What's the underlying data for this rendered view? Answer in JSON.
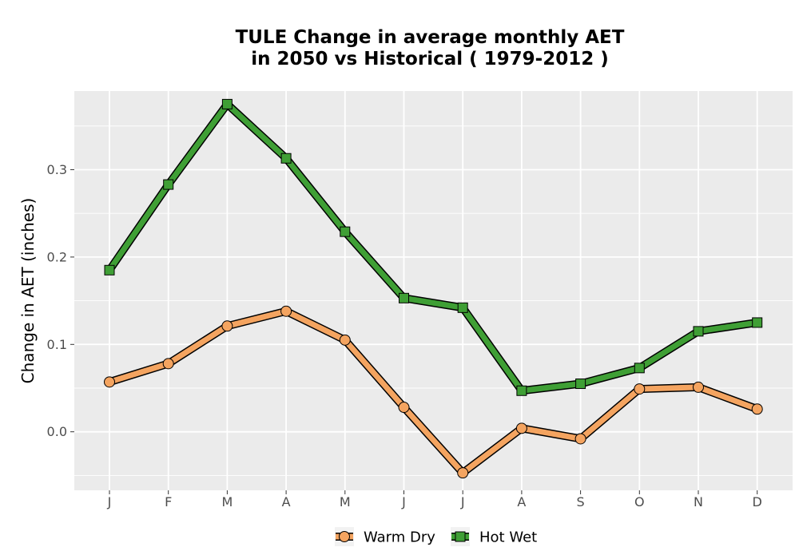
{
  "chart_data": {
    "type": "line",
    "title_lines": [
      "TULE  Change in average monthly AET",
      "in 2050 vs Historical ( 1979-2012 )"
    ],
    "xlabel": "",
    "ylabel": "Change in AET (inches)",
    "categories": [
      "J",
      "F",
      "M",
      "A",
      "M",
      "J",
      "J",
      "A",
      "S",
      "O",
      "N",
      "D"
    ],
    "yticks": [
      "0.0",
      "0.1",
      "0.2",
      "0.3"
    ],
    "ylim": [
      -0.067,
      0.39
    ],
    "grid": true,
    "legend_position": "bottom",
    "series": [
      {
        "name": "Warm Dry",
        "color": "#f4a460",
        "marker": "circle",
        "values": [
          0.057,
          0.078,
          0.121,
          0.138,
          0.105,
          0.028,
          -0.047,
          0.004,
          -0.008,
          0.049,
          0.051,
          0.026
        ]
      },
      {
        "name": "Hot Wet",
        "color": "#3f9f35",
        "marker": "square",
        "values": [
          0.185,
          0.283,
          0.375,
          0.313,
          0.229,
          0.153,
          0.142,
          0.047,
          0.055,
          0.073,
          0.115,
          0.125
        ]
      }
    ]
  }
}
